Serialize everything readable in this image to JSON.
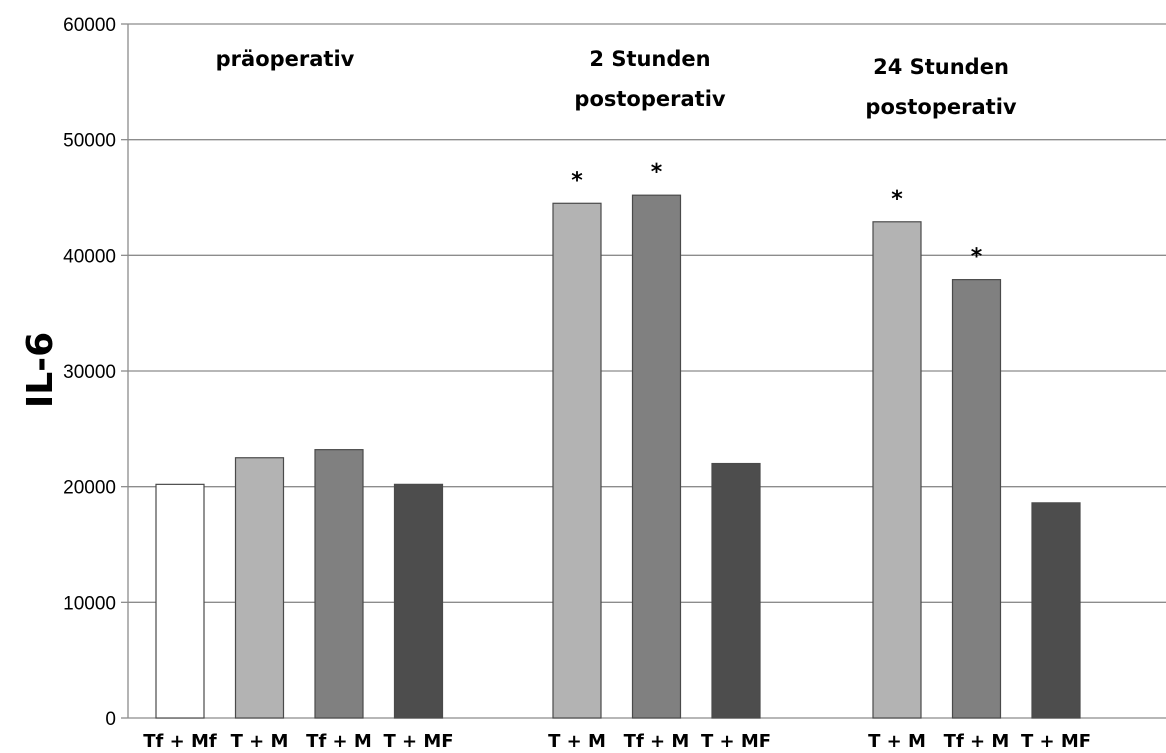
{
  "chart_data": {
    "type": "bar",
    "ylabel": "IL-6",
    "xlabel": "",
    "ylim": [
      0,
      60000
    ],
    "yticks": [
      0,
      10000,
      20000,
      30000,
      40000,
      50000,
      60000
    ],
    "grid": true,
    "colors": {
      "Tf + Mf": "#ffffff",
      "T + M": "#b3b3b3",
      "Tf + M": "#808080",
      "T + MF": "#4d4d4d"
    },
    "groups": [
      {
        "title_lines": [
          "präoperativ"
        ],
        "bars": [
          {
            "label": "Tf + Mf",
            "value": 20200,
            "significant": false
          },
          {
            "label": "T + M",
            "value": 22500,
            "significant": false
          },
          {
            "label": "Tf + M",
            "value": 23200,
            "significant": false
          },
          {
            "label": "T + MF",
            "value": 20200,
            "significant": false
          }
        ]
      },
      {
        "title_lines": [
          "2 Stunden",
          "postoperativ"
        ],
        "bars": [
          {
            "label": "T + M",
            "value": 44500,
            "significant": true
          },
          {
            "label": "Tf + M",
            "value": 45200,
            "significant": true
          },
          {
            "label": "T + MF",
            "value": 22000,
            "significant": false
          }
        ]
      },
      {
        "title_lines": [
          "24 Stunden",
          "postoperativ"
        ],
        "bars": [
          {
            "label": "T + M",
            "value": 42900,
            "significant": true
          },
          {
            "label": "Tf + M",
            "value": 37900,
            "significant": true
          },
          {
            "label": "T + MF",
            "value": 18600,
            "significant": false
          }
        ]
      }
    ],
    "significance_marker": "*"
  }
}
